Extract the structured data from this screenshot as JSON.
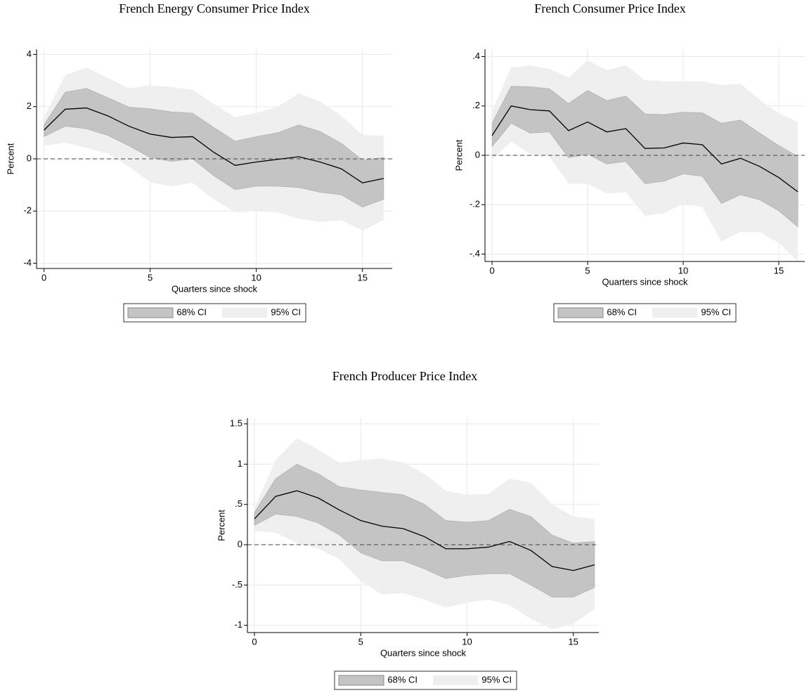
{
  "chart_data": [
    {
      "type": "line",
      "title": "French Energy Consumer Price Index",
      "xlabel": "Quarters since shock",
      "ylabel": "Percent",
      "x": [
        0,
        1,
        2,
        3,
        4,
        5,
        6,
        7,
        8,
        9,
        10,
        11,
        12,
        13,
        14,
        15,
        16
      ],
      "xlim": [
        -0.35,
        16.4
      ],
      "xticks": [
        0,
        5,
        10,
        15
      ],
      "ylim": [
        -4.2,
        4.2
      ],
      "yticks": [
        -4,
        -2,
        0,
        2,
        4
      ],
      "grid": true,
      "yline": 0,
      "series": [
        {
          "color": "#000000",
          "values": [
            1.1,
            1.9,
            1.95,
            1.65,
            1.25,
            0.95,
            0.82,
            0.85,
            0.25,
            -0.25,
            -0.12,
            -0.02,
            0.08,
            -0.12,
            -0.38,
            -0.92,
            -0.75
          ]
        }
      ],
      "bands": [
        {
          "name": "68% CI",
          "color": "#c4c4c4",
          "upper": [
            1.3,
            2.55,
            2.7,
            2.35,
            1.98,
            1.92,
            1.8,
            1.75,
            1.2,
            0.68,
            0.85,
            1.0,
            1.3,
            1.05,
            0.6,
            -0.05,
            0.05
          ],
          "lower": [
            0.85,
            1.25,
            1.15,
            0.9,
            0.5,
            0.05,
            -0.1,
            0.0,
            -0.65,
            -1.18,
            -1.05,
            -1.05,
            -1.1,
            -1.28,
            -1.38,
            -1.85,
            -1.55
          ]
        },
        {
          "name": "95% CI",
          "color": "#efefef",
          "upper": [
            1.6,
            3.2,
            3.5,
            3.1,
            2.7,
            2.82,
            2.75,
            2.65,
            2.1,
            1.6,
            1.75,
            2.0,
            2.5,
            2.2,
            1.65,
            0.92,
            0.88
          ],
          "lower": [
            0.5,
            0.62,
            0.42,
            0.2,
            -0.3,
            -0.9,
            -1.05,
            -0.92,
            -1.55,
            -2.05,
            -2.0,
            -2.05,
            -2.3,
            -2.42,
            -2.35,
            -2.75,
            -2.35
          ]
        }
      ]
    },
    {
      "type": "line",
      "title": "French Consumer Price Index",
      "xlabel": "Quarters since shock",
      "ylabel": "Percent",
      "x": [
        0,
        1,
        2,
        3,
        4,
        5,
        6,
        7,
        8,
        9,
        10,
        11,
        12,
        13,
        14,
        15,
        16
      ],
      "xlim": [
        -0.37,
        16.36
      ],
      "xticks": [
        0,
        5,
        10,
        15
      ],
      "ylim": [
        -0.43,
        0.43
      ],
      "yticks": [
        {
          "value": -0.4,
          "label": "-.4"
        },
        {
          "value": -0.2,
          "label": "-.2"
        },
        0,
        {
          "value": 0.2,
          "label": ".2"
        },
        {
          "value": 0.4,
          "label": ".4"
        }
      ],
      "grid": true,
      "yline": 0,
      "series": [
        {
          "color": "#000000",
          "values": [
            0.08,
            0.2,
            0.185,
            0.18,
            0.1,
            0.135,
            0.095,
            0.108,
            0.028,
            0.03,
            0.05,
            0.043,
            -0.035,
            -0.012,
            -0.045,
            -0.09,
            -0.148
          ]
        }
      ],
      "bands": [
        {
          "name": "68% CI",
          "color": "#c4c4c4",
          "upper": [
            0.13,
            0.28,
            0.278,
            0.27,
            0.21,
            0.263,
            0.222,
            0.24,
            0.168,
            0.165,
            0.175,
            0.172,
            0.13,
            0.143,
            0.09,
            0.04,
            -0.005
          ],
          "lower": [
            0.035,
            0.13,
            0.09,
            0.095,
            -0.01,
            0.005,
            -0.035,
            -0.025,
            -0.115,
            -0.105,
            -0.075,
            -0.085,
            -0.195,
            -0.16,
            -0.18,
            -0.225,
            -0.29
          ]
        },
        {
          "name": "95% CI",
          "color": "#efefef",
          "upper": [
            0.18,
            0.355,
            0.365,
            0.35,
            0.315,
            0.385,
            0.345,
            0.365,
            0.305,
            0.3,
            0.3,
            0.3,
            0.285,
            0.29,
            0.225,
            0.17,
            0.135
          ],
          "lower": [
            -0.02,
            0.055,
            0.005,
            -0.005,
            -0.115,
            -0.115,
            -0.155,
            -0.15,
            -0.245,
            -0.235,
            -0.195,
            -0.21,
            -0.35,
            -0.31,
            -0.31,
            -0.355,
            -0.43
          ]
        }
      ]
    },
    {
      "type": "line",
      "title": "French Producer Price Index",
      "xlabel": "Quarters since shock",
      "ylabel": "Percent",
      "x": [
        0,
        1,
        2,
        3,
        4,
        5,
        6,
        7,
        8,
        9,
        10,
        11,
        12,
        13,
        14,
        15,
        16
      ],
      "xlim": [
        -0.33,
        16.2
      ],
      "xticks": [
        0,
        5,
        10,
        15
      ],
      "ylim": [
        -1.09,
        1.57
      ],
      "yticks": [
        -1,
        {
          "value": -0.5,
          "label": "-.5"
        },
        0,
        {
          "value": 0.5,
          "label": ".5"
        },
        1,
        1.5
      ],
      "grid": true,
      "yline": 0,
      "series": [
        {
          "color": "#000000",
          "values": [
            0.32,
            0.6,
            0.67,
            0.58,
            0.43,
            0.3,
            0.23,
            0.2,
            0.1,
            -0.05,
            -0.05,
            -0.03,
            0.04,
            -0.07,
            -0.27,
            -0.32,
            -0.25
          ]
        }
      ],
      "bands": [
        {
          "name": "68% CI",
          "color": "#c4c4c4",
          "upper": [
            0.4,
            0.82,
            1.0,
            0.88,
            0.72,
            0.68,
            0.65,
            0.62,
            0.5,
            0.3,
            0.28,
            0.3,
            0.44,
            0.35,
            0.12,
            0.02,
            0.04
          ],
          "lower": [
            0.24,
            0.38,
            0.35,
            0.27,
            0.12,
            -0.1,
            -0.2,
            -0.2,
            -0.3,
            -0.42,
            -0.38,
            -0.36,
            -0.36,
            -0.5,
            -0.65,
            -0.65,
            -0.53
          ]
        },
        {
          "name": "95% CI",
          "color": "#efefef",
          "upper": [
            0.45,
            1.05,
            1.32,
            1.18,
            1.02,
            1.05,
            1.07,
            1.02,
            0.88,
            0.67,
            0.62,
            0.63,
            0.82,
            0.77,
            0.5,
            0.35,
            0.32
          ],
          "lower": [
            0.17,
            0.15,
            0.02,
            -0.05,
            -0.18,
            -0.45,
            -0.62,
            -0.6,
            -0.68,
            -0.78,
            -0.72,
            -0.68,
            -0.75,
            -0.92,
            -1.05,
            -0.98,
            -0.8
          ]
        }
      ]
    }
  ]
}
